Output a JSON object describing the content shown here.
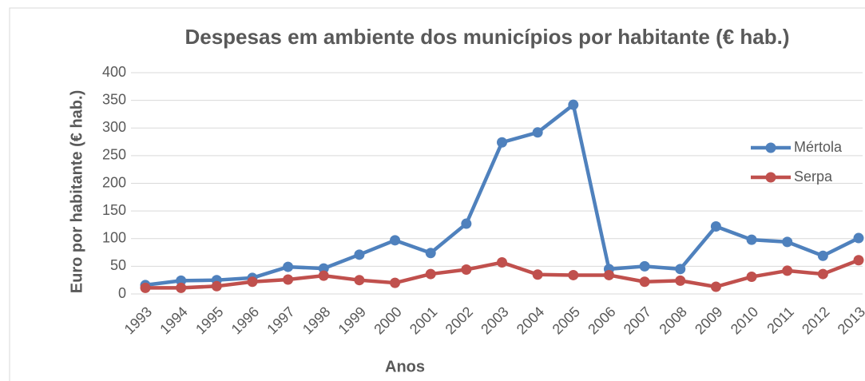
{
  "chart_data": {
    "type": "line",
    "title": "Despesas em ambiente dos municípios por habitante (€ hab.)",
    "xlabel": "Anos",
    "ylabel": "Euro por habitante (€ hab.)",
    "categories": [
      "1993",
      "1994",
      "1995",
      "1996",
      "1997",
      "1998",
      "1999",
      "2000",
      "2001",
      "2002",
      "2003",
      "2004",
      "2005",
      "2006",
      "2007",
      "2008",
      "2009",
      "2010",
      "2011",
      "2012",
      "2013"
    ],
    "series": [
      {
        "name": "Mértola",
        "color": "#4f81bd",
        "values": [
          16,
          24,
          25,
          29,
          49,
          46,
          71,
          97,
          74,
          127,
          274,
          292,
          342,
          45,
          50,
          45,
          122,
          98,
          94,
          69,
          101
        ]
      },
      {
        "name": "Serpa",
        "color": "#c0504d",
        "values": [
          11,
          11,
          14,
          22,
          26,
          33,
          25,
          20,
          36,
          44,
          57,
          35,
          34,
          34,
          22,
          24,
          13,
          31,
          42,
          36,
          61
        ]
      }
    ],
    "ylim": [
      0,
      400
    ],
    "yticks": [
      0,
      50,
      100,
      150,
      200,
      250,
      300,
      350,
      400
    ],
    "grid": true,
    "legend": "right"
  }
}
